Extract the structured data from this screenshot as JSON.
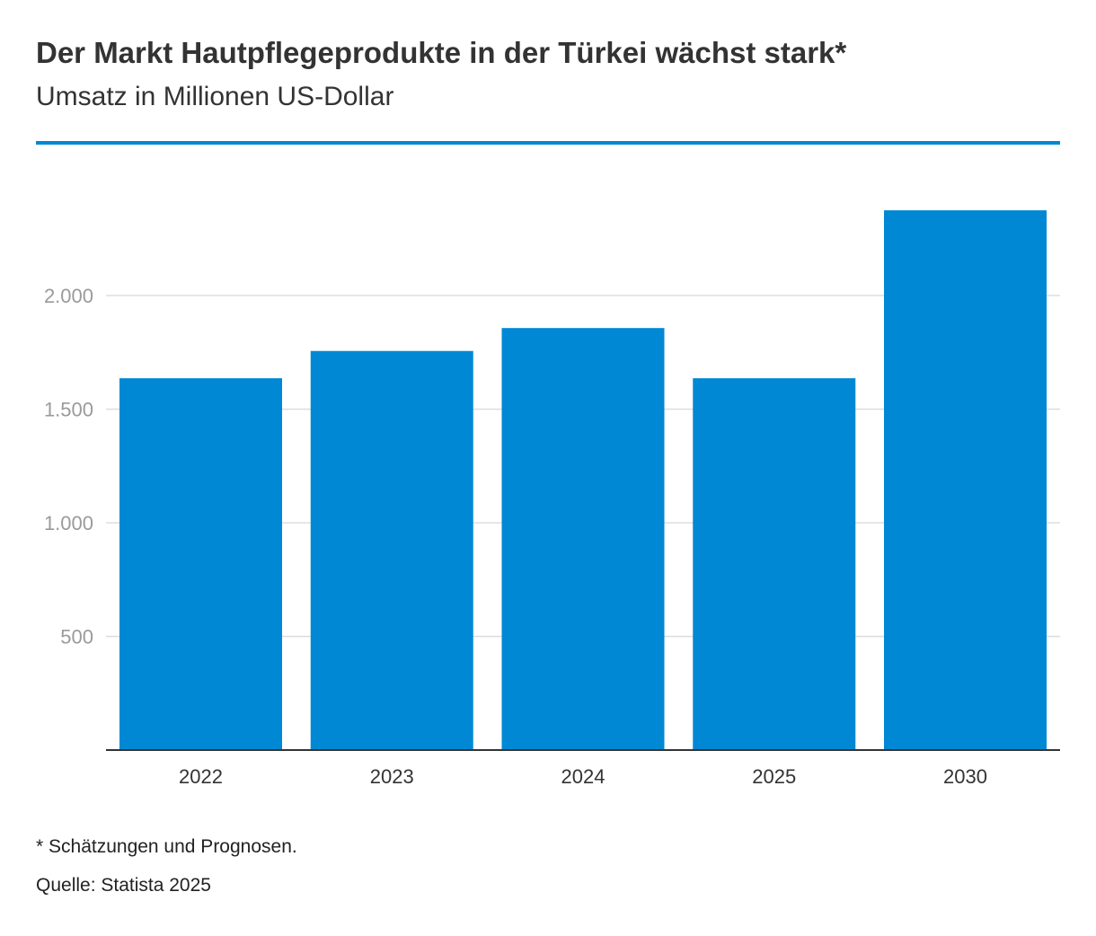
{
  "header": {
    "title": "Der Markt Hautpflegeprodukte in der Türkei wächst stark*",
    "subtitle": "Umsatz in Millionen US-Dollar"
  },
  "colors": {
    "accent": "#0088d4",
    "bar": "#0088d4",
    "grid": "#dddddd",
    "axis": "#333333",
    "tick_label": "#9a9a9a",
    "category_label": "#333333"
  },
  "chart_data": {
    "type": "bar",
    "title": "Der Markt Hautpflegeprodukte in der Türkei wächst stark*",
    "subtitle": "Umsatz in Millionen US-Dollar",
    "xlabel": "",
    "ylabel": "",
    "categories": [
      "2022",
      "2023",
      "2024",
      "2025",
      "2030"
    ],
    "values": [
      1636,
      1756,
      1857,
      1636,
      2375
    ],
    "ylim": [
      0,
      2400
    ],
    "yticks": [
      500,
      1000,
      1500,
      2000
    ],
    "ytick_labels": [
      "500",
      "1.000",
      "1.500",
      "2.000"
    ],
    "grid": true,
    "legend": "none"
  },
  "footer": {
    "note": "* Schätzungen und Prognosen.",
    "source": "Quelle: Statista 2025"
  }
}
